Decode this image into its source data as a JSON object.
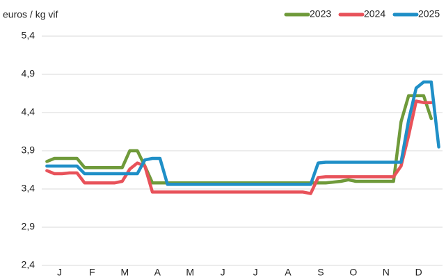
{
  "chart_data": {
    "type": "line",
    "y_label": "euros / kg vif",
    "x": [
      1,
      2,
      3,
      4,
      5,
      6,
      7,
      8,
      9,
      10,
      11,
      12,
      13,
      14,
      15,
      16,
      17,
      18,
      19,
      20,
      21,
      22,
      23,
      24,
      25,
      26,
      27,
      28,
      29,
      30,
      31,
      32,
      33,
      34,
      35,
      36,
      37,
      38,
      39,
      40,
      41,
      42,
      43,
      44,
      45,
      46,
      47,
      48,
      49,
      50,
      51,
      52,
      53
    ],
    "xlim": [
      0.5,
      53.5
    ],
    "xticks": [
      {
        "value": 2.67,
        "label": "J"
      },
      {
        "value": 7,
        "label": "F"
      },
      {
        "value": 11.33,
        "label": "M"
      },
      {
        "value": 15.67,
        "label": "A"
      },
      {
        "value": 20,
        "label": "M"
      },
      {
        "value": 24.33,
        "label": "J"
      },
      {
        "value": 28.67,
        "label": "J"
      },
      {
        "value": 33,
        "label": "A"
      },
      {
        "value": 37.33,
        "label": "S"
      },
      {
        "value": 41.67,
        "label": "O"
      },
      {
        "value": 46,
        "label": "N"
      },
      {
        "value": 50.33,
        "label": "D"
      }
    ],
    "ylim": [
      2.4,
      5.4
    ],
    "yticks": [
      {
        "value": 2.4,
        "label": "2,4"
      },
      {
        "value": 2.9,
        "label": "2,9"
      },
      {
        "value": 3.4,
        "label": "3,4"
      },
      {
        "value": 3.9,
        "label": "3,9"
      },
      {
        "value": 4.4,
        "label": "4,4"
      },
      {
        "value": 4.9,
        "label": "4,9"
      },
      {
        "value": 5.4,
        "label": "5,4"
      }
    ],
    "grid": true,
    "legend": "top-right",
    "series": [
      {
        "name": "2023",
        "color": "#6f9a3a",
        "values": [
          3.76,
          3.8,
          3.8,
          3.8,
          3.8,
          3.68,
          3.68,
          3.68,
          3.68,
          3.68,
          3.68,
          3.9,
          3.9,
          3.7,
          3.48,
          3.48,
          3.48,
          3.48,
          3.48,
          3.48,
          3.48,
          3.48,
          3.48,
          3.48,
          3.48,
          3.48,
          3.48,
          3.48,
          3.48,
          3.48,
          3.48,
          3.48,
          3.48,
          3.48,
          3.48,
          3.48,
          3.48,
          3.48,
          3.49,
          3.5,
          3.52,
          3.5,
          3.5,
          3.5,
          3.5,
          3.5,
          3.5,
          4.28,
          4.62,
          4.62,
          4.62,
          4.32,
          null
        ]
      },
      {
        "name": "2024",
        "color": "#e8525a",
        "values": [
          3.64,
          3.6,
          3.6,
          3.61,
          3.61,
          3.48,
          3.48,
          3.48,
          3.48,
          3.48,
          3.5,
          3.66,
          3.74,
          3.7,
          3.36,
          3.36,
          3.36,
          3.36,
          3.36,
          3.36,
          3.36,
          3.36,
          3.36,
          3.36,
          3.36,
          3.36,
          3.36,
          3.36,
          3.36,
          3.36,
          3.36,
          3.36,
          3.36,
          3.36,
          3.36,
          3.34,
          3.55,
          3.56,
          3.56,
          3.56,
          3.56,
          3.56,
          3.56,
          3.56,
          3.56,
          3.56,
          3.56,
          3.7,
          4.1,
          4.55,
          4.53,
          4.53,
          null
        ]
      },
      {
        "name": "2025",
        "color": "#1f8fc7",
        "values": [
          3.7,
          3.7,
          3.7,
          3.7,
          3.7,
          3.6,
          3.6,
          3.6,
          3.6,
          3.6,
          3.6,
          3.6,
          3.6,
          3.78,
          3.8,
          3.8,
          3.46,
          3.46,
          3.46,
          3.46,
          3.46,
          3.46,
          3.46,
          3.46,
          3.46,
          3.46,
          3.46,
          3.46,
          3.46,
          3.46,
          3.46,
          3.46,
          3.46,
          3.46,
          3.46,
          3.46,
          3.74,
          3.75,
          3.75,
          3.75,
          3.75,
          3.75,
          3.75,
          3.75,
          3.75,
          3.75,
          3.75,
          3.75,
          4.3,
          4.72,
          4.8,
          4.8,
          3.95
        ]
      }
    ]
  }
}
